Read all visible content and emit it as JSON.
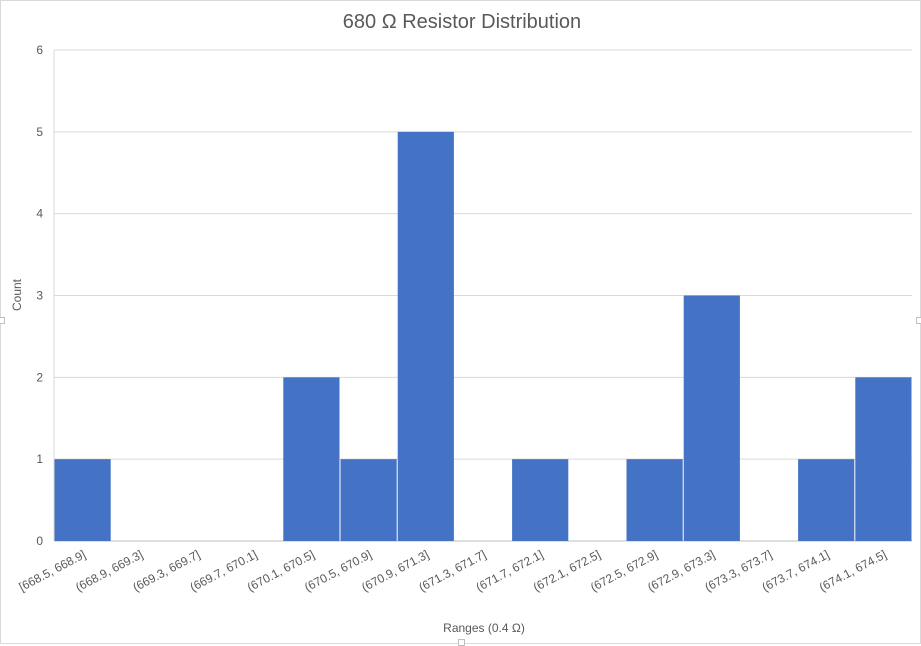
{
  "chart_data": {
    "type": "bar",
    "title": "680 Ω Resistor Distribution",
    "xlabel": "Ranges (0.4 Ω)",
    "ylabel": "Count",
    "categories": [
      "[668.5, 668.9]",
      "(668.9, 669.3]",
      "(669.3, 669.7]",
      "(669.7, 670.1]",
      "(670.1, 670.5]",
      "(670.5, 670.9]",
      "(670.9, 671.3]",
      "(671.3, 671.7]",
      "(671.7, 672.1]",
      "(672.1, 672.5]",
      "(672.5, 672.9]",
      "(672.9, 673.3]",
      "(673.3, 673.7]",
      "(673.7, 674.1]",
      "(674.1, 674.5]"
    ],
    "values": [
      1,
      0,
      0,
      0,
      2,
      1,
      5,
      0,
      1,
      0,
      1,
      3,
      0,
      1,
      2
    ],
    "ylim": [
      0,
      6
    ],
    "yticks": [
      0,
      1,
      2,
      3,
      4,
      5,
      6
    ],
    "grid": true,
    "bar_color": "#4472c4",
    "gridline_color": "#d9d9d9"
  }
}
